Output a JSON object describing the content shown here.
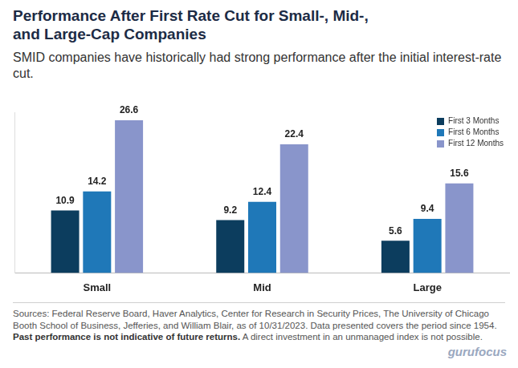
{
  "chart_data": {
    "type": "bar",
    "title": "Performance After First Rate Cut for Small-, Mid-, and Large-Cap Companies",
    "subtitle": "SMID companies have historically had strong performance after the initial interest-rate cut.",
    "categories": [
      "Small",
      "Mid",
      "Large"
    ],
    "series": [
      {
        "name": "First 3 Months",
        "color": "#0c3d5e",
        "values": [
          10.9,
          9.2,
          5.6
        ]
      },
      {
        "name": "First 6 Months",
        "color": "#1f78b8",
        "values": [
          14.2,
          12.4,
          9.4
        ]
      },
      {
        "name": "First 12 Months",
        "color": "#8995cb",
        "values": [
          26.6,
          22.4,
          15.6
        ]
      }
    ],
    "ylim": [
      0,
      28
    ],
    "grid": false,
    "legend": "upper right",
    "data_labels": true,
    "tick_labels": "x",
    "source": [
      "Sources: Federal Reserve Board, Haver Analytics, Center for Research in Security Prices, The University of Chicago Booth School of Business, Jefferies, and William Blair, as of 10/31/2023. Data presented covers the period since 1954.",
      "Past performance is not indicative of future returns.",
      "A direct investment in an unmanaged index is not possible."
    ],
    "watermark": "gurufocus"
  }
}
